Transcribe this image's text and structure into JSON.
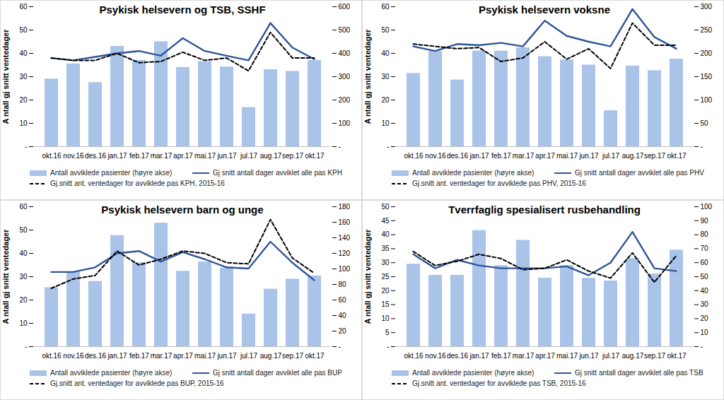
{
  "chart_data": [
    {
      "type": "bar",
      "title": "Psykisk helsevern og TSB, SSHF",
      "y_label": "A ntall gj snitt ventedager",
      "categories": [
        "okt.16",
        "nov.16",
        "des.16",
        "jan.17",
        "feb.17",
        "mar.17",
        "apr.17",
        "mai.17",
        "jun.17",
        "jul.17",
        "aug.17",
        "sep.17",
        "okt.17"
      ],
      "ylim": [
        0,
        60
      ],
      "yticks": [
        {
          "value": 0,
          "label": "-"
        },
        10,
        20,
        30,
        40,
        50,
        60
      ],
      "y2lim": [
        0,
        600
      ],
      "y2ticks": [
        {
          "value": 0,
          "label": "-"
        },
        100,
        200,
        300,
        400,
        500,
        600
      ],
      "grid": false,
      "legend": "bottom",
      "series": [
        {
          "name": "Antall avviklede pasienter (høyre akse)",
          "type": "bar",
          "axis": "y2",
          "color": "#a9c3e9",
          "values": [
            290,
            355,
            275,
            430,
            370,
            450,
            340,
            365,
            342,
            168,
            330,
            323,
            370
          ]
        },
        {
          "name": "Gj snitt antall dager avviklet alle pas KPH",
          "type": "line",
          "line_style": "solid",
          "color": "#2f5597",
          "values": [
            38,
            37,
            38.5,
            40,
            41,
            39,
            46.5,
            41,
            39,
            37,
            53,
            42.5,
            37.5
          ]
        },
        {
          "name": "Gj.snitt ant. ventedager for avviklede pas KPH, 2015-16",
          "type": "line",
          "line_style": "dashed",
          "color": "#000000",
          "values": [
            38,
            37,
            37,
            40,
            36,
            36.5,
            40.5,
            37,
            38,
            32.5,
            49,
            38,
            38
          ]
        }
      ]
    },
    {
      "type": "bar",
      "title": "Psykisk helsevern voksne",
      "y_label": "A ntall gj snitt ventedager",
      "categories": [
        "okt.16",
        "nov.16",
        "des.16",
        "jan.17",
        "feb.17",
        "mar.17",
        "apr.17",
        "mai.17",
        "jun.17",
        "jul.17",
        "aug.17",
        "sep.17",
        "okt.17"
      ],
      "ylim": [
        0,
        60
      ],
      "yticks": [
        {
          "value": 0,
          "label": "-"
        },
        10,
        20,
        30,
        40,
        50,
        60
      ],
      "y2lim": [
        0,
        300
      ],
      "y2ticks": [
        {
          "value": 0,
          "label": "-"
        },
        50,
        100,
        150,
        200,
        250,
        300
      ],
      "grid": false,
      "legend": "bottom",
      "series": [
        {
          "name": "Antall avviklede pasienter (høyre akse)",
          "type": "bar",
          "axis": "y2",
          "color": "#a9c3e9",
          "values": [
            157,
            205,
            143,
            205,
            205,
            212,
            193,
            186,
            175,
            77,
            173,
            163,
            188
          ]
        },
        {
          "name": "Gj snitt antall dager avviklet alle pas PHV",
          "type": "line",
          "line_style": "solid",
          "color": "#2f5597",
          "values": [
            43,
            41,
            44,
            43.5,
            44.5,
            43,
            54,
            47.5,
            45,
            43,
            59,
            47,
            42
          ]
        },
        {
          "name": "Gj.snitt ant. ventedager for avviklede pas PHV, 2015-16",
          "type": "line",
          "line_style": "dashed",
          "color": "#000000",
          "values": [
            44,
            43,
            42,
            42.5,
            36.5,
            38,
            45,
            37.5,
            42,
            33.5,
            53,
            43.5,
            43.5
          ]
        }
      ]
    },
    {
      "type": "bar",
      "title": "Psykisk helsevern barn og unge",
      "y_label": "A ntall gj snitt ventedager",
      "categories": [
        "okt.16",
        "nov.16",
        "des.16",
        "jan.17",
        "feb.17",
        "mar.17",
        "apr.17",
        "mai.17",
        "jun.17",
        "jul.17",
        "aug.17",
        "sep.17",
        "okt.17"
      ],
      "ylim": [
        0,
        60
      ],
      "yticks": [
        {
          "value": 0,
          "label": "-"
        },
        10,
        20,
        30,
        40,
        50,
        60
      ],
      "y2lim": [
        0,
        180
      ],
      "y2ticks": [
        {
          "value": 0,
          "label": "-"
        },
        20,
        40,
        60,
        80,
        100,
        120,
        140,
        160,
        180
      ],
      "grid": false,
      "legend": "bottom",
      "series": [
        {
          "name": "Antall avviklede pasienter (høyre akse)",
          "type": "bar",
          "axis": "y2",
          "color": "#a9c3e9",
          "values": [
            76,
            96,
            84,
            143,
            108,
            159,
            97,
            109,
            101,
            42,
            74,
            87,
            91
          ]
        },
        {
          "name": "Gj snitt antall dager avviklet alle pas BUP",
          "type": "line",
          "line_style": "solid",
          "color": "#2f5597",
          "values": [
            32,
            32,
            34,
            40,
            41,
            36.5,
            40.5,
            37.5,
            34,
            33.5,
            45,
            36,
            28.5
          ]
        },
        {
          "name": "Gj.snitt ant. ventedager for avviklede pas BUP, 2015-16",
          "type": "line",
          "line_style": "dashed",
          "color": "#000000",
          "values": [
            25,
            29,
            30.5,
            41,
            35,
            37.5,
            41,
            40,
            36,
            35.5,
            54.5,
            38,
            31.5
          ]
        }
      ]
    },
    {
      "type": "bar",
      "title": "Tverrfaglig spesialisert rusbehandling",
      "y_label": "A ntall gj snitt ventedager",
      "categories": [
        "okt.16",
        "nov.16",
        "des.16",
        "jan.17",
        "feb.17",
        "mar.17",
        "apr.17",
        "mai.17",
        "jun.17",
        "jul.17",
        "aug.17",
        "sep.17",
        "okt.17"
      ],
      "ylim": [
        0,
        50
      ],
      "yticks": [
        {
          "value": 0,
          "label": "-"
        },
        5,
        10,
        15,
        20,
        25,
        30,
        35,
        40,
        45,
        50
      ],
      "y2lim": [
        0,
        100
      ],
      "y2ticks": [
        {
          "value": 0,
          "label": "-"
        },
        10,
        20,
        30,
        40,
        50,
        60,
        70,
        80,
        90,
        100
      ],
      "grid": false,
      "legend": "bottom",
      "series": [
        {
          "name": "Antall avviklede pasienter (høyre akse)",
          "type": "bar",
          "axis": "y2",
          "color": "#a9c3e9",
          "values": [
            59,
            51,
            51,
            83,
            58,
            76,
            49,
            58,
            49,
            47,
            63,
            52,
            69
          ]
        },
        {
          "name": "Gj snitt antall dager avviklet alle pas TSB",
          "type": "line",
          "line_style": "solid",
          "color": "#2f5597",
          "values": [
            33,
            28,
            31,
            29,
            28,
            28,
            28,
            28.7,
            25.5,
            30,
            41,
            28,
            27
          ]
        },
        {
          "name": "Gj.snitt ant. ventedager for avviklede pas TSB, 2015-16",
          "type": "line",
          "line_style": "dashed",
          "color": "#000000",
          "values": [
            34,
            29,
            30.5,
            33,
            31.5,
            27.5,
            28,
            31,
            27,
            24.5,
            33.5,
            23,
            32.5
          ]
        }
      ]
    }
  ]
}
